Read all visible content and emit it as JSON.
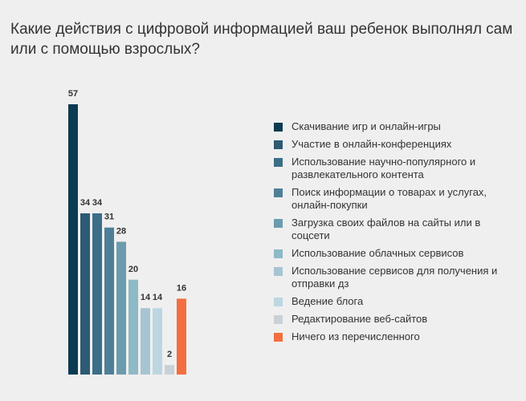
{
  "chart_data": {
    "type": "bar",
    "title": "Какие действия с цифровой информацией ваш ребенок выполнял сам или с помощью взрослых?",
    "ylim": [
      0,
      57
    ],
    "grid": false,
    "legend_position": "right",
    "series": [
      {
        "name": "Скачивание игр и онлайн-игры",
        "value": 57,
        "color": "#0b3b52"
      },
      {
        "name": "Участие в онлайн-конференциях",
        "value": 34,
        "color": "#2e5a74"
      },
      {
        "name": "Использование научно-популярного и развлекательного контента",
        "value": 34,
        "color": "#3c6e88"
      },
      {
        "name": "Поиск информации о товарах и услугах, онлайн-покупки",
        "value": 31,
        "color": "#4f7f98"
      },
      {
        "name": "Загрузка своих файлов на сайты или в соцсети",
        "value": 28,
        "color": "#6b9cae"
      },
      {
        "name": "Использование облачных сервисов",
        "value": 20,
        "color": "#8eb9c7"
      },
      {
        "name": "Использование сервисов для получения и отправки дз",
        "value": 14,
        "color": "#a7c4d2"
      },
      {
        "name": "Ведение блога",
        "value": 14,
        "color": "#bdd6e2"
      },
      {
        "name": "Редактирование веб-сайтов",
        "value": 2,
        "color": "#c9d1d6"
      },
      {
        "name": "Ничего из перечисленного",
        "value": 16,
        "color": "#f36f3f"
      }
    ]
  }
}
